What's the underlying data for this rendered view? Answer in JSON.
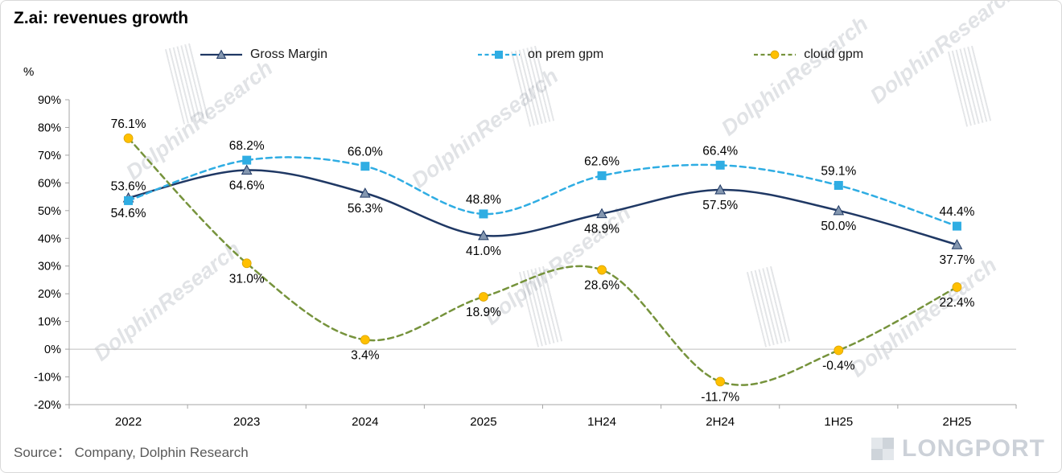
{
  "title": "Z.ai: revenues growth",
  "source_label": "Source：  Company, Dolphin Research",
  "watermark_text": "DolphinResearch",
  "brand_text": "LONGPORT",
  "chart_data": {
    "type": "line",
    "title": "Z.ai: revenues growth",
    "categories": [
      "2022",
      "2023",
      "2024",
      "2025",
      "1H24",
      "2H24",
      "1H25",
      "2H25"
    ],
    "y_axis": {
      "label": "%",
      "min": -20,
      "max": 90,
      "tick_step": 10
    },
    "grid": false,
    "legend_position": "top",
    "series": [
      {
        "name": "Gross Margin",
        "style": "solid",
        "color": "#1F3864",
        "marker": "triangle",
        "marker_fill": "#8497B0",
        "values": [
          54.6,
          64.6,
          56.3,
          41.0,
          48.9,
          57.5,
          50.0,
          37.7
        ],
        "labels": [
          "54.6%",
          "64.6%",
          "56.3%",
          "41.0%",
          "48.9%",
          "57.5%",
          "50.0%",
          "37.7%"
        ],
        "label_side": "below"
      },
      {
        "name": "on prem gpm",
        "style": "dashed",
        "color": "#2FADE3",
        "marker": "square",
        "marker_fill": "#2FADE3",
        "values": [
          53.6,
          68.2,
          66.0,
          48.8,
          62.6,
          66.4,
          59.1,
          44.4
        ],
        "labels": [
          "53.6%",
          "68.2%",
          "66.0%",
          "48.8%",
          "62.6%",
          "66.4%",
          "59.1%",
          "44.4%"
        ],
        "label_side": "above"
      },
      {
        "name": "cloud gpm",
        "style": "dashed",
        "color": "#76933C",
        "marker": "circle",
        "marker_fill": "#FFC000",
        "values": [
          76.1,
          31.0,
          3.4,
          18.9,
          28.6,
          -11.7,
          -0.4,
          22.4
        ],
        "labels": [
          "76.1%",
          "31.0%",
          "3.4%",
          "18.9%",
          "28.6%",
          "-11.7%",
          "-0.4%",
          "22.4%"
        ],
        "label_side": "below",
        "label_side_overrides": {
          "0": "above"
        }
      }
    ]
  }
}
